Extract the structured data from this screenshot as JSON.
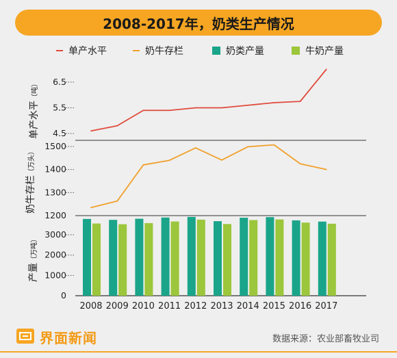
{
  "title": "2008-2017年，奶类生产情况",
  "legend": [
    {
      "label": "单产水平",
      "kind": "line",
      "color": "#e04a3c"
    },
    {
      "label": "奶牛存栏",
      "kind": "line",
      "color": "#f0a02a"
    },
    {
      "label": "奶类产量",
      "kind": "box",
      "color": "#1aa58a"
    },
    {
      "label": "牛奶产量",
      "kind": "box",
      "color": "#9cc63b"
    }
  ],
  "footer": {
    "brand": "界面新闻",
    "source": "数据来源：农业部畜牧业司"
  },
  "chart_data": [
    {
      "type": "line",
      "ylabel": "单产水平",
      "yunit": "（吨）",
      "ylim": [
        4.5,
        7.0
      ],
      "yticks": [
        "4.5",
        "5.5",
        "6.5"
      ],
      "x": [
        "2008",
        "2009",
        "2010",
        "2011",
        "2012",
        "2013",
        "2014",
        "2015",
        "2016",
        "2017"
      ],
      "series": [
        {
          "name": "单产水平",
          "color": "#e04a3c",
          "values": [
            4.6,
            4.8,
            5.4,
            5.4,
            5.5,
            5.5,
            5.6,
            5.7,
            5.75,
            7.0
          ]
        }
      ]
    },
    {
      "type": "line",
      "ylabel": "奶牛存栏",
      "yunit": "（万头）",
      "ylim": [
        1200,
        1500
      ],
      "yticks": [
        "1200",
        "1300",
        "1400",
        "1500"
      ],
      "x": [
        "2008",
        "2009",
        "2010",
        "2011",
        "2012",
        "2013",
        "2014",
        "2015",
        "2016",
        "2017"
      ],
      "series": [
        {
          "name": "奶牛存栏",
          "color": "#f0a02a",
          "values": [
            1235,
            1263,
            1420,
            1440,
            1494,
            1441,
            1499,
            1507,
            1425,
            1400
          ]
        }
      ]
    },
    {
      "type": "bar",
      "ylabel": "产量",
      "yunit": "（万吨）",
      "ylim": [
        0,
        4000
      ],
      "yticks": [
        "0",
        "1000",
        "2000",
        "3000"
      ],
      "categories": [
        "2008",
        "2009",
        "2010",
        "2011",
        "2012",
        "2013",
        "2014",
        "2015",
        "2016",
        "2017"
      ],
      "series": [
        {
          "name": "奶类产量",
          "color": "#1aa58a",
          "values": [
            3780,
            3735,
            3790,
            3850,
            3880,
            3670,
            3840,
            3870,
            3710,
            3650
          ]
        },
        {
          "name": "牛奶产量",
          "color": "#9cc63b",
          "values": [
            3555,
            3520,
            3575,
            3655,
            3745,
            3530,
            3725,
            3755,
            3600,
            3545
          ]
        }
      ]
    }
  ]
}
